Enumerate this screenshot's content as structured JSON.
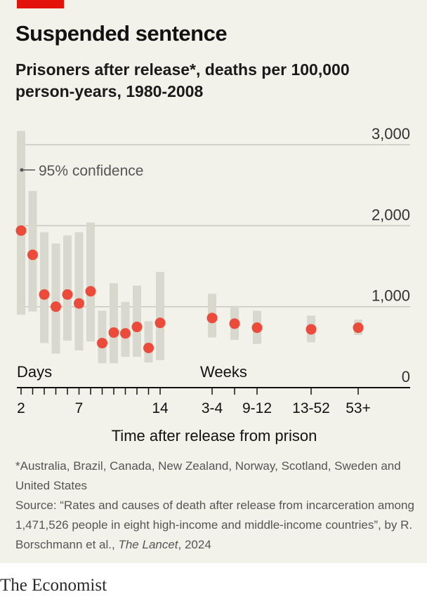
{
  "colors": {
    "accent": "#e3120b",
    "point": "#ec4a3a",
    "ci_bar": "#d9d8cf",
    "grid": "#c9c8c0",
    "background": "#f3f2ea"
  },
  "header": {
    "title": "Suspended sentence",
    "subtitle": "Prisoners after release*, deaths per 100,000 person-years, 1980-2008"
  },
  "chart_data": {
    "type": "scatter",
    "title": "Suspended sentence",
    "subtitle": "Prisoners after release*, deaths per 100,000 person-years, 1980-2008",
    "xlabel": "Time after release from prison",
    "ylabel": "",
    "ylim": [
      0,
      3000
    ],
    "yticks": [
      {
        "value": 0,
        "label": "0"
      },
      {
        "value": 1000,
        "label": "1,000"
      },
      {
        "value": 2000,
        "label": "2,000"
      },
      {
        "value": 3000,
        "label": "3,000"
      }
    ],
    "grid": true,
    "group_labels": {
      "days": "Days",
      "weeks": "Weeks"
    },
    "legend": {
      "label": "95% confidence",
      "placement": "top-left"
    },
    "series": [
      {
        "name": "Days",
        "points": [
          {
            "x": 2,
            "y": 1940,
            "low": 900,
            "high": 3170
          },
          {
            "x": 3,
            "y": 1640,
            "low": 940,
            "high": 2430
          },
          {
            "x": 4,
            "y": 1150,
            "low": 550,
            "high": 1920
          },
          {
            "x": 5,
            "y": 1000,
            "low": 420,
            "high": 1780
          },
          {
            "x": 6,
            "y": 1150,
            "low": 580,
            "high": 1880
          },
          {
            "x": 7,
            "y": 1040,
            "low": 460,
            "high": 1920
          },
          {
            "x": 8,
            "y": 1190,
            "low": 570,
            "high": 2040
          },
          {
            "x": 9,
            "y": 550,
            "low": 300,
            "high": 950
          },
          {
            "x": 10,
            "y": 680,
            "low": 300,
            "high": 1290
          },
          {
            "x": 11,
            "y": 670,
            "low": 380,
            "high": 1060
          },
          {
            "x": 12,
            "y": 750,
            "low": 380,
            "high": 1260
          },
          {
            "x": 13,
            "y": 490,
            "low": 310,
            "high": 820
          },
          {
            "x": 14,
            "y": 800,
            "low": 340,
            "high": 1430
          }
        ]
      },
      {
        "name": "Weeks",
        "points": [
          {
            "x": "3-4",
            "y": 860,
            "low": 620,
            "high": 1160
          },
          {
            "x": "5-8",
            "y": 790,
            "low": 590,
            "high": 1010
          },
          {
            "x": "9-12",
            "y": 740,
            "low": 540,
            "high": 950
          },
          {
            "x": "13-52",
            "y": 720,
            "low": 560,
            "high": 890
          },
          {
            "x": "53+",
            "y": 740,
            "low": 650,
            "high": 840
          }
        ]
      }
    ],
    "xtick_labels": [
      "2",
      "7",
      "14",
      "3-4",
      "9-12",
      "13-52",
      "53+"
    ]
  },
  "footnote": {
    "countries": "*Australia, Brazil, Canada, New Zealand, Norway, Scotland, Sweden and United States",
    "source_prefix": "Source: “Rates and causes of death after release from incarceration among 1,471,526 people in eight high-income and middle-income countries”, by R. Borschmann et al., ",
    "source_journal": "The Lancet",
    "source_suffix": ", 2024"
  },
  "branding": {
    "logo": "The Economist"
  }
}
